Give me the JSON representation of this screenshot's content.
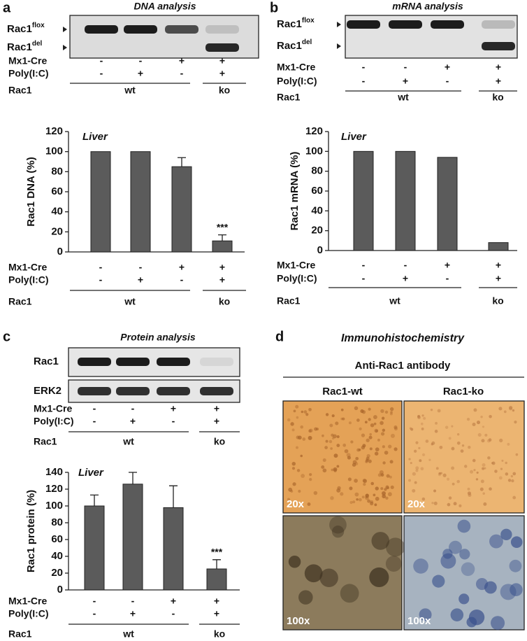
{
  "panel_labels": [
    "a",
    "b",
    "c",
    "d"
  ],
  "blots": [
    {
      "title": "DNA analysis",
      "rows": [
        {
          "name": "Rac1",
          "sup": "flox"
        },
        {
          "name": "Rac1",
          "sup": "del"
        }
      ],
      "conditions": {
        "rows": [
          {
            "name": "Mx1-Cre",
            "values": [
              "-",
              "-",
              "+",
              "+"
            ]
          },
          {
            "name": "Poly(I:C)",
            "values": [
              "-",
              "+",
              "-",
              "+"
            ]
          }
        ],
        "group_row": {
          "name": "Rac1",
          "groups": [
            "wt",
            "ko"
          ]
        }
      }
    },
    {
      "title": "mRNA analysis",
      "rows": [
        {
          "name": "Rac1",
          "sup": "flox"
        },
        {
          "name": "Rac1",
          "sup": "del"
        }
      ],
      "conditions": {
        "rows": [
          {
            "name": "Mx1-Cre",
            "values": [
              "-",
              "-",
              "+",
              "+"
            ]
          },
          {
            "name": "Poly(I:C)",
            "values": [
              "-",
              "+",
              "-",
              "+"
            ]
          }
        ],
        "group_row": {
          "name": "Rac1",
          "groups": [
            "wt",
            "ko"
          ]
        }
      }
    },
    {
      "title": "Protein analysis",
      "rows": [
        {
          "name": "Rac1"
        },
        {
          "name": "ERK2"
        }
      ],
      "conditions": {
        "rows": [
          {
            "name": "Mx1-Cre",
            "values": [
              "-",
              "-",
              "+",
              "+"
            ]
          },
          {
            "name": "Poly(I:C)",
            "values": [
              "-",
              "+",
              "-",
              "+"
            ]
          }
        ],
        "group_row": {
          "name": "Rac1",
          "groups": [
            "wt",
            "ko"
          ]
        }
      }
    }
  ],
  "chart_data": [
    {
      "type": "bar",
      "title": "Liver",
      "y_label": "Rac1 DNA (%)",
      "values": [
        100,
        100,
        85,
        11
      ],
      "errors": [
        null,
        null,
        9,
        6
      ],
      "value_annotations": [
        null,
        null,
        null,
        "***"
      ],
      "ylim": [
        0,
        120
      ],
      "yticks": [
        0,
        20,
        40,
        60,
        80,
        100,
        120
      ],
      "color": "#5b5b5b",
      "conditions": {
        "rows": [
          {
            "name": "Mx1-Cre",
            "values": [
              "-",
              "-",
              "+",
              "+"
            ]
          },
          {
            "name": "Poly(I:C)",
            "values": [
              "-",
              "+",
              "-",
              "+"
            ]
          }
        ],
        "group_row": {
          "name": "Rac1",
          "groups": [
            "wt",
            "ko"
          ]
        }
      }
    },
    {
      "type": "bar",
      "title": "Liver",
      "y_label": "Rac1 mRNA (%)",
      "values": [
        100,
        100,
        94,
        8
      ],
      "ylim": [
        0,
        120
      ],
      "yticks": [
        0,
        20,
        40,
        60,
        80,
        100,
        120
      ],
      "color": "#5b5b5b",
      "conditions": {
        "rows": [
          {
            "name": "Mx1-Cre",
            "values": [
              "-",
              "-",
              "+",
              "+"
            ]
          },
          {
            "name": "Poly(I:C)",
            "values": [
              "-",
              "+",
              "-",
              "+"
            ]
          }
        ],
        "group_row": {
          "name": "Rac1",
          "groups": [
            "wt",
            "ko"
          ]
        }
      }
    },
    {
      "type": "bar",
      "title": "Liver",
      "y_label": "Rac1 protein (%)",
      "values": [
        100,
        126,
        98,
        25
      ],
      "errors": [
        13,
        14,
        26,
        11
      ],
      "value_annotations": [
        null,
        null,
        null,
        "***"
      ],
      "ylim": [
        0,
        140
      ],
      "yticks": [
        0,
        20,
        40,
        60,
        80,
        100,
        120,
        140
      ],
      "color": "#5b5b5b",
      "conditions": {
        "rows": [
          {
            "name": "Mx1-Cre",
            "values": [
              "-",
              "-",
              "+",
              "+"
            ]
          },
          {
            "name": "Poly(I:C)",
            "values": [
              "-",
              "+",
              "-",
              "+"
            ]
          }
        ],
        "group_row": {
          "name": "Rac1",
          "groups": [
            "wt",
            "ko"
          ]
        }
      }
    }
  ],
  "histology": {
    "title": "Immunohistochemistry",
    "subtitle": "Anti-Rac1 antibody",
    "columns": [
      "Rac1-wt",
      "Rac1-ko"
    ],
    "magnifications": [
      [
        "20x",
        "20x"
      ],
      [
        "100x",
        "100x"
      ]
    ]
  }
}
